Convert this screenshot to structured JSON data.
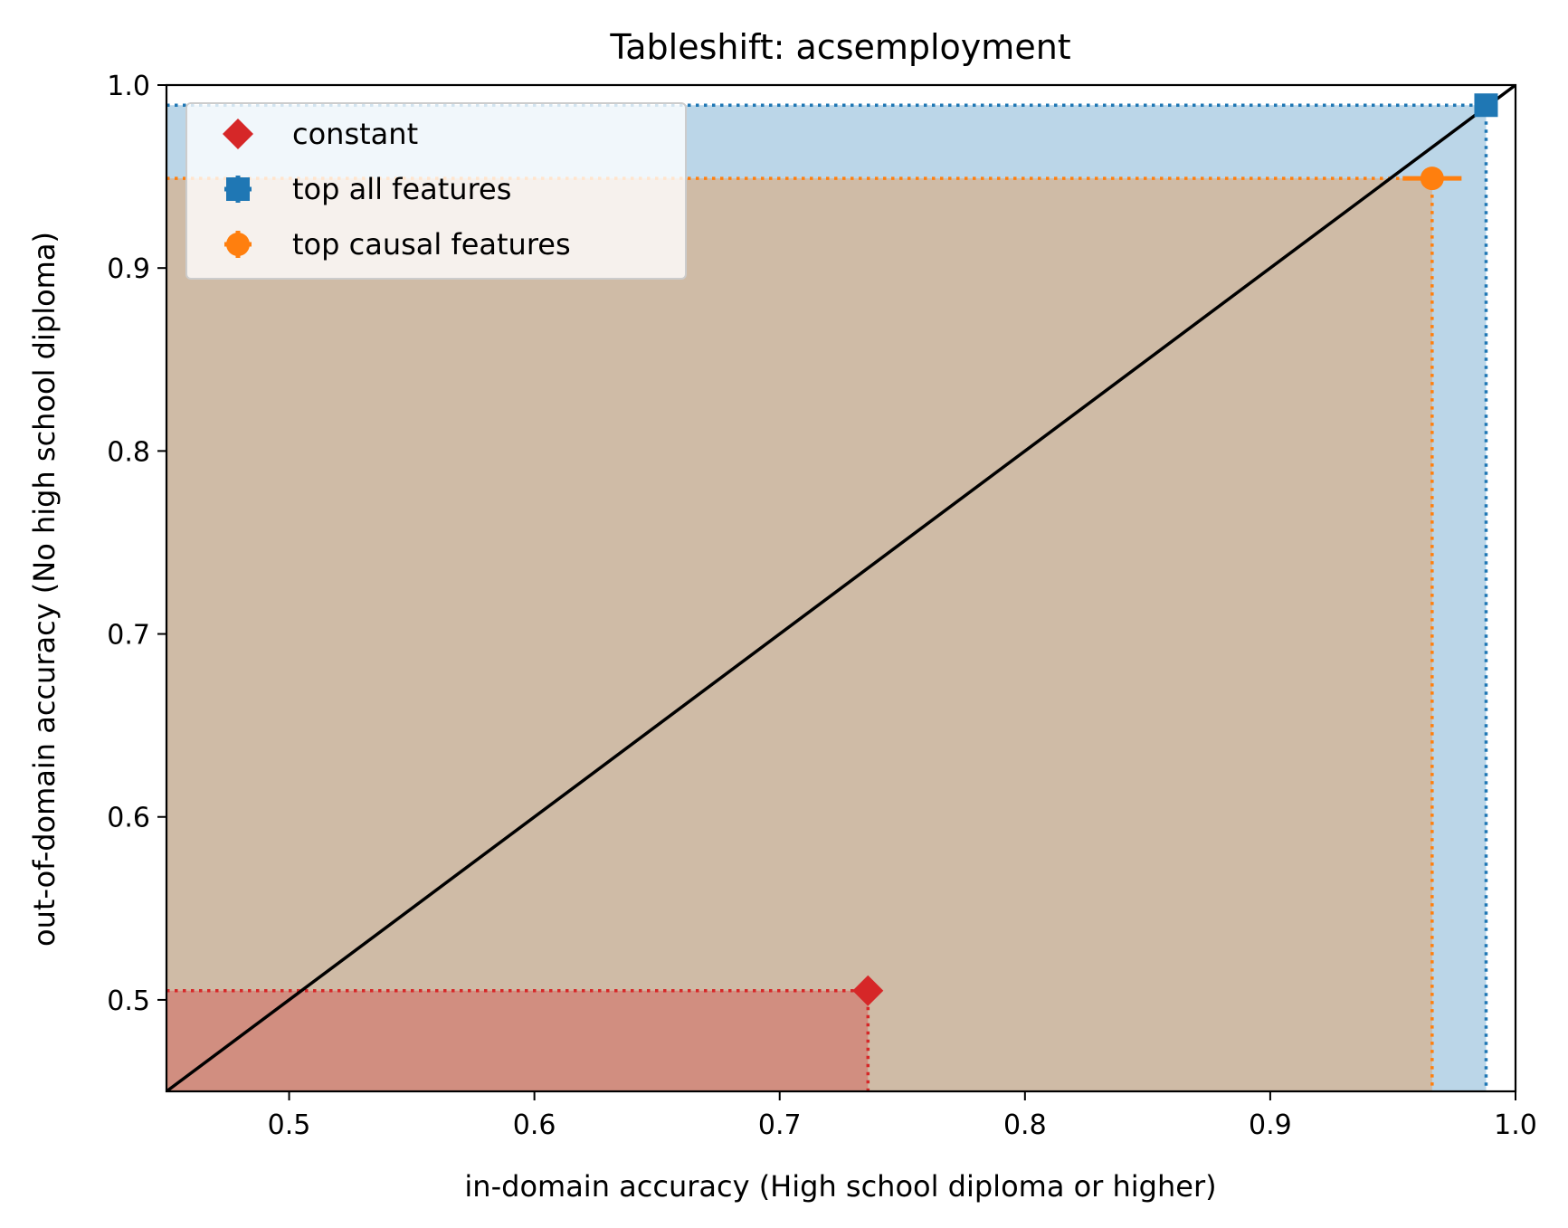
{
  "chart_data": {
    "type": "scatter",
    "title": "Tableshift: acsemployment",
    "xlabel": "in-domain accuracy (High school diploma or higher)",
    "ylabel": "out-of-domain accuracy (No high school diploma)",
    "xlim": [
      0.45,
      1.0
    ],
    "ylim": [
      0.45,
      1.0
    ],
    "xticks": [
      0.5,
      0.6,
      0.7,
      0.8,
      0.9,
      1.0
    ],
    "yticks": [
      0.5,
      0.6,
      0.7,
      0.8,
      0.9,
      1.0
    ],
    "xtick_labels": [
      "0.5",
      "0.6",
      "0.7",
      "0.8",
      "0.9",
      "1.0"
    ],
    "ytick_labels": [
      "0.5",
      "0.6",
      "0.7",
      "0.8",
      "0.9",
      "1.0"
    ],
    "grid": false,
    "legend_position": "upper-left",
    "diagonal": true,
    "series": [
      {
        "name": "constant",
        "marker": "diamond",
        "color": "#d62728",
        "x": 0.736,
        "y": 0.505,
        "xerr": 0.0,
        "yerr": 0.0
      },
      {
        "name": "top all features",
        "marker": "square",
        "color": "#1f77b4",
        "x": 0.988,
        "y": 0.989,
        "xerr": 0.001,
        "yerr": 0.001
      },
      {
        "name": "top causal features",
        "marker": "circle",
        "color": "#ff7f0e",
        "x": 0.966,
        "y": 0.949,
        "xerr": 0.012,
        "yerr": 0.001
      }
    ]
  }
}
